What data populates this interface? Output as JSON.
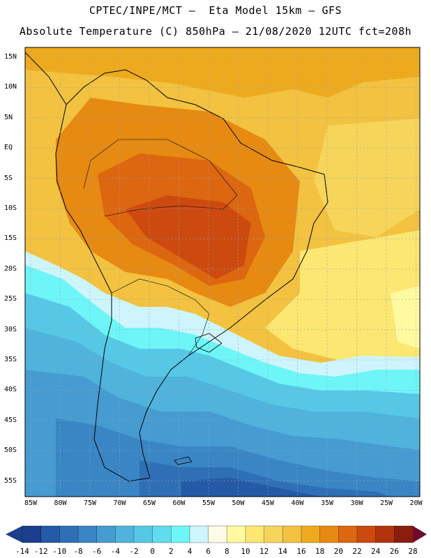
{
  "header": {
    "line1": "CPTEC/INPE/MCT –  Eta Model 15km – GFS",
    "line2": "Absolute Temperature (C) 850hPa – 21/08/2020 12UTC fct=208h"
  },
  "axes": {
    "y_labels": [
      "15N",
      "10N",
      "5N",
      "EQ",
      "5S",
      "10S",
      "15S",
      "20S",
      "25S",
      "30S",
      "35S",
      "40S",
      "45S",
      "50S",
      "55S"
    ],
    "x_labels": [
      "85W",
      "80W",
      "75W",
      "70W",
      "65W",
      "60W",
      "55W",
      "50W",
      "45W",
      "40W",
      "35W",
      "30W",
      "25W",
      "20W"
    ]
  },
  "colorbar": {
    "labels": [
      "-14",
      "-12",
      "-10",
      "-8",
      "-6",
      "-4",
      "-2",
      "0",
      "2",
      "4",
      "6",
      "8",
      "10",
      "12",
      "14",
      "16",
      "18",
      "20",
      "22",
      "24",
      "26",
      "28"
    ],
    "colors": [
      "#1b3f8c",
      "#245aa6",
      "#2f6fb5",
      "#3a85c4",
      "#469bd0",
      "#4fb3dc",
      "#56c8e6",
      "#60dcef",
      "#6ef5f7",
      "#cdf5fb",
      "#fffbe6",
      "#fffaa0",
      "#fbe772",
      "#f6d55a",
      "#f2c240",
      "#eeaa1e",
      "#e68a12",
      "#dd6610",
      "#cc4a10",
      "#b3330f",
      "#8a1e0e"
    ],
    "low_color": "#1b3f8c",
    "high_color": "#6d0a2e"
  },
  "map": {
    "land_outline": "#000000",
    "grid_color": "#9aa4b0"
  }
}
